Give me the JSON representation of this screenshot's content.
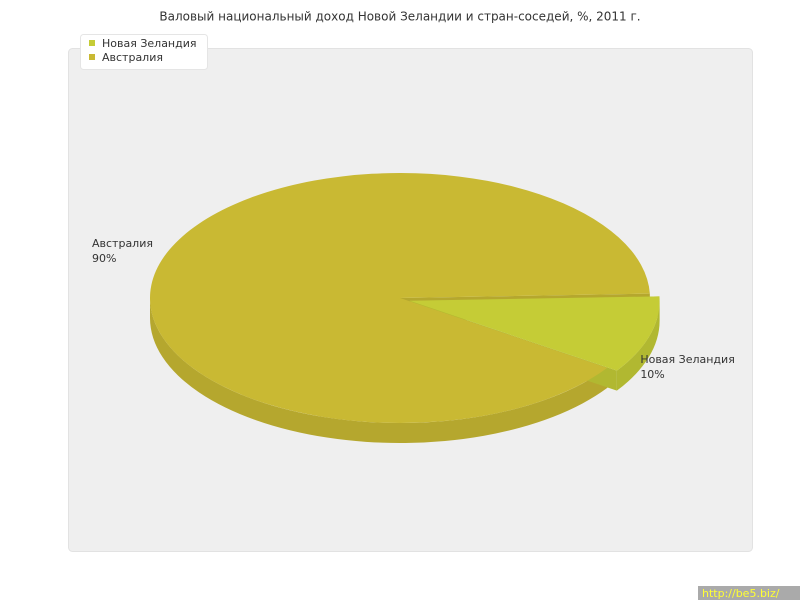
{
  "chart_data": {
    "type": "pie",
    "title": "Валовый национальный доход Новой Зеландии и стран-соседей, %, 2011 г.",
    "categories": [
      "Новая Зеландия",
      "Австралия"
    ],
    "values": [
      10,
      90
    ],
    "value_labels": [
      "10%",
      "90%"
    ],
    "colors": [
      "#c5cc36",
      "#c9b933"
    ],
    "legend": "top-left"
  },
  "watermark": "http://be5.biz/"
}
